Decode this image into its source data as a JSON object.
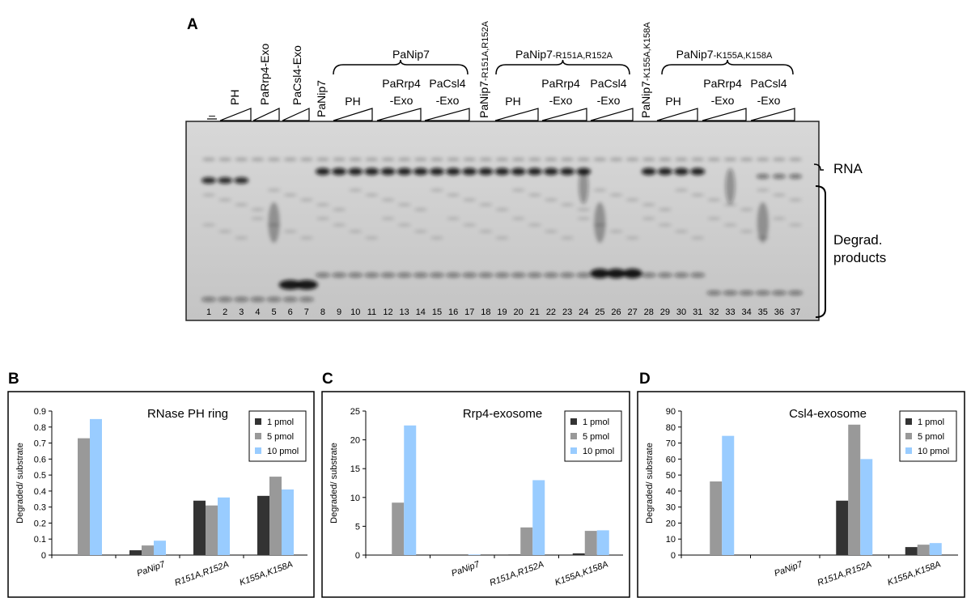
{
  "gel": {
    "panel_label": "A",
    "lane_labels": [
      "–",
      "PH",
      "PaRrp4-Exo",
      "PaCsl4-Exo",
      "PaNip7"
    ],
    "mutant_labels": [
      [
        "PaNip7",
        "-R151A,R152A"
      ],
      [
        "PaNip7",
        "-K155A,K158A"
      ]
    ],
    "groups": [
      {
        "name": [
          "PaNip7"
        ],
        "sublabels": [
          [
            "PH"
          ],
          [
            "PaRrp4",
            "-Exo"
          ],
          [
            "PaCsl4",
            "-Exo"
          ]
        ]
      },
      {
        "name": [
          "PaNip7",
          "-R151A,R152A"
        ],
        "sublabels": [
          [
            "PH"
          ],
          [
            "PaRrp4",
            "-Exo"
          ],
          [
            "PaCsl4",
            "-Exo"
          ]
        ]
      },
      {
        "name": [
          "PaNip7",
          "-K155A,K158A"
        ],
        "sublabels": [
          [
            "PH"
          ],
          [
            "PaRrp4",
            "-Exo"
          ],
          [
            "PaCsl4",
            "-Exo"
          ]
        ]
      }
    ],
    "right_labels": [
      [
        "RNA"
      ],
      [
        "Degrad.",
        "products"
      ]
    ],
    "lane_numbers": [
      1,
      2,
      3,
      4,
      5,
      6,
      7,
      8,
      9,
      10,
      11,
      12,
      13,
      14,
      15,
      16,
      17,
      18,
      19,
      20,
      21,
      22,
      23,
      24,
      25,
      26,
      27,
      28,
      29,
      30,
      31,
      32,
      33,
      34,
      35,
      36,
      37
    ]
  },
  "chart_data": [
    {
      "type": "bar",
      "panel_label": "B",
      "title": "RNase PH ring",
      "y_label": "Degraded/ substrate",
      "categories": [
        null,
        "PaNip7",
        "R151A,R152A",
        "K155A,K158A"
      ],
      "series": [
        {
          "name": "1 pmol",
          "color": "#333333",
          "values": [
            null,
            0.03,
            0.34,
            0.37
          ]
        },
        {
          "name": "5 pmol",
          "color": "#999999",
          "values": [
            0.73,
            0.06,
            0.31,
            0.49
          ]
        },
        {
          "name": "10 pmol",
          "color": "#99ccff",
          "values": [
            0.85,
            0.09,
            0.36,
            0.41
          ]
        }
      ],
      "ylim": [
        0,
        0.9
      ],
      "yticks": [
        0,
        0.1,
        0.2,
        0.3,
        0.4,
        0.5,
        0.6,
        0.7,
        0.8,
        0.9
      ],
      "legend": "top-right"
    },
    {
      "type": "bar",
      "panel_label": "C",
      "title": "Rrp4-exosome",
      "y_label": "Degraded/ substrate",
      "categories": [
        null,
        "PaNip7",
        "R151A,R152A",
        "K155A,K158A"
      ],
      "series": [
        {
          "name": "1 pmol",
          "color": "#333333",
          "values": [
            null,
            0,
            0.1,
            0.3
          ]
        },
        {
          "name": "5 pmol",
          "color": "#999999",
          "values": [
            9.1,
            0,
            4.8,
            4.2
          ]
        },
        {
          "name": "10 pmol",
          "color": "#99ccff",
          "values": [
            22.5,
            0.1,
            13,
            4.3
          ]
        }
      ],
      "ylim": [
        0,
        25
      ],
      "yticks": [
        0,
        5,
        10,
        15,
        20,
        25
      ],
      "legend": "top-right"
    },
    {
      "type": "bar",
      "panel_label": "D",
      "title": "Csl4-exosome",
      "y_label": "Degraded/ substrate",
      "categories": [
        null,
        "PaNip7",
        "R151A,R152A",
        "K155A,K158A"
      ],
      "series": [
        {
          "name": "1 pmol",
          "color": "#333333",
          "values": [
            null,
            0,
            34,
            5
          ]
        },
        {
          "name": "5 pmol",
          "color": "#999999",
          "values": [
            46,
            0,
            81.5,
            6.5
          ]
        },
        {
          "name": "10 pmol",
          "color": "#99ccff",
          "values": [
            74.5,
            0,
            60,
            7.5
          ]
        }
      ],
      "ylim": [
        0,
        90
      ],
      "yticks": [
        0,
        10,
        20,
        30,
        40,
        50,
        60,
        70,
        80,
        90
      ],
      "legend": "top-right"
    }
  ]
}
